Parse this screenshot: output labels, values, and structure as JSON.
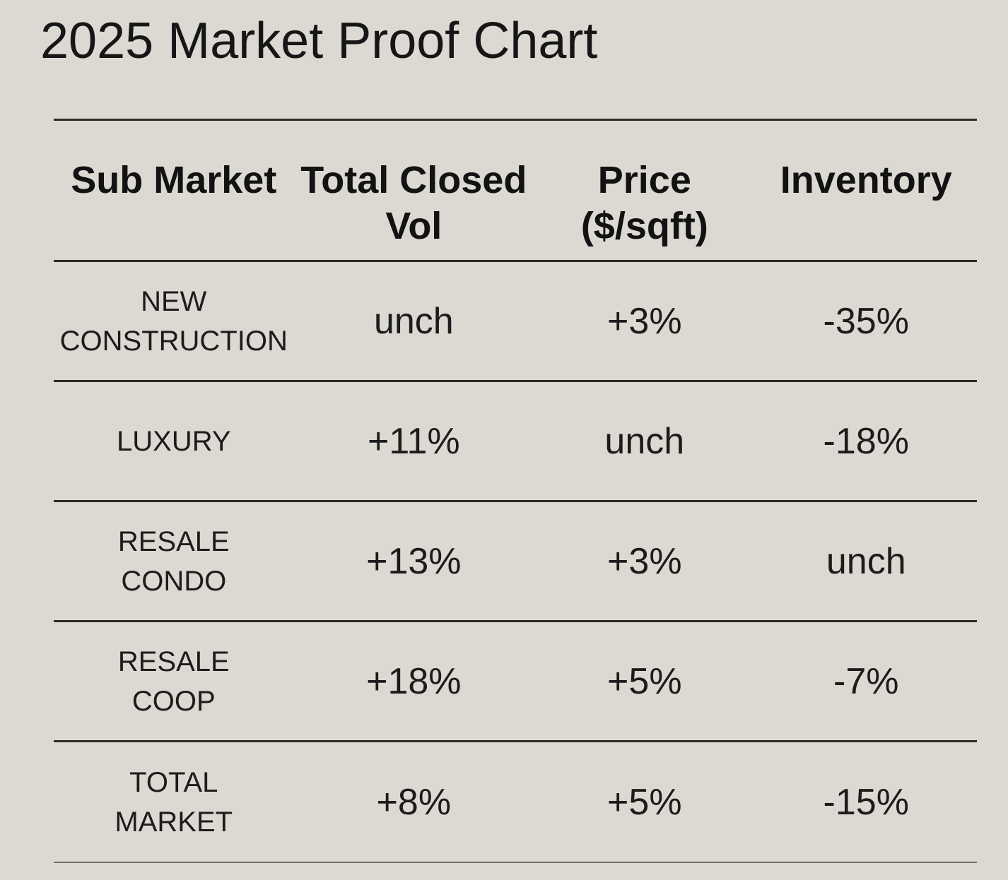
{
  "title": "2025 Market Proof Chart",
  "colors": {
    "background": "#dcd9d2",
    "text": "#161616",
    "rule_dark": "#2b2a28",
    "rule_bottom": "#766e62"
  },
  "chart_data": {
    "type": "table",
    "title": "2025 Market Proof Chart",
    "columns": [
      "Sub Market",
      "Total Closed Vol",
      "Price ($/sqft)",
      "Inventory"
    ],
    "rows": [
      [
        "NEW CONSTRUCTION",
        "unch",
        "+3%",
        "-35%"
      ],
      [
        "LUXURY",
        "+11%",
        "unch",
        "-18%"
      ],
      [
        "RESALE CONDO",
        "+13%",
        "+3%",
        "unch"
      ],
      [
        "RESALE COOP",
        "+18%",
        "+5%",
        "-7%"
      ],
      [
        "TOTAL MARKET",
        "+8%",
        "+5%",
        "-15%"
      ]
    ]
  },
  "display": {
    "column_lines": [
      "Sub Market",
      "Total Closed\nVol",
      "Price\n($/sqft)",
      "Inventory"
    ],
    "sub_market_lines": [
      "NEW\nCONSTRUCTION",
      "LUXURY",
      "RESALE\nCONDO",
      "RESALE\nCOOP",
      "TOTAL\nMARKET"
    ]
  }
}
